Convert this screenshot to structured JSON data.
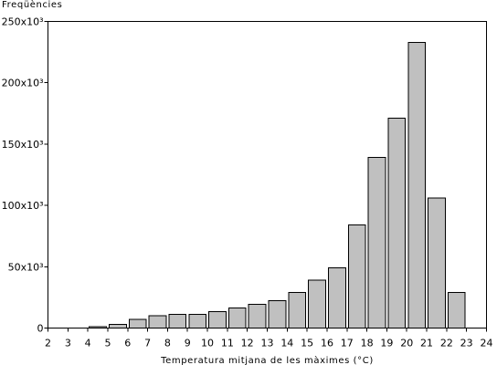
{
  "chart_data": {
    "type": "bar",
    "ylabel": "Freqüències",
    "xlabel": "Temperatura mitjana de les màximes (°C)",
    "x_ticks": [
      2,
      3,
      4,
      5,
      6,
      7,
      8,
      9,
      10,
      11,
      12,
      13,
      14,
      15,
      16,
      17,
      18,
      19,
      20,
      21,
      22,
      23,
      24
    ],
    "y_ticks": [
      0,
      50000,
      100000,
      150000,
      200000,
      250000
    ],
    "y_tick_labels": [
      "0",
      "50x10³",
      "100x10³",
      "150x10³",
      "200x10³",
      "250x10³"
    ],
    "xlim": [
      2,
      24
    ],
    "ylim": [
      0,
      250000
    ],
    "categories": [
      4,
      5,
      6,
      7,
      8,
      9,
      10,
      11,
      12,
      13,
      14,
      15,
      16,
      17,
      18,
      19,
      20,
      21,
      22
    ],
    "values": [
      1000,
      3000,
      7000,
      10000,
      11000,
      11000,
      13500,
      16500,
      19500,
      22500,
      29000,
      39000,
      49000,
      84000,
      139000,
      171000,
      233000,
      106000,
      29000
    ],
    "bar_color": "#c0c0c0",
    "grid": false,
    "legend": "none"
  }
}
